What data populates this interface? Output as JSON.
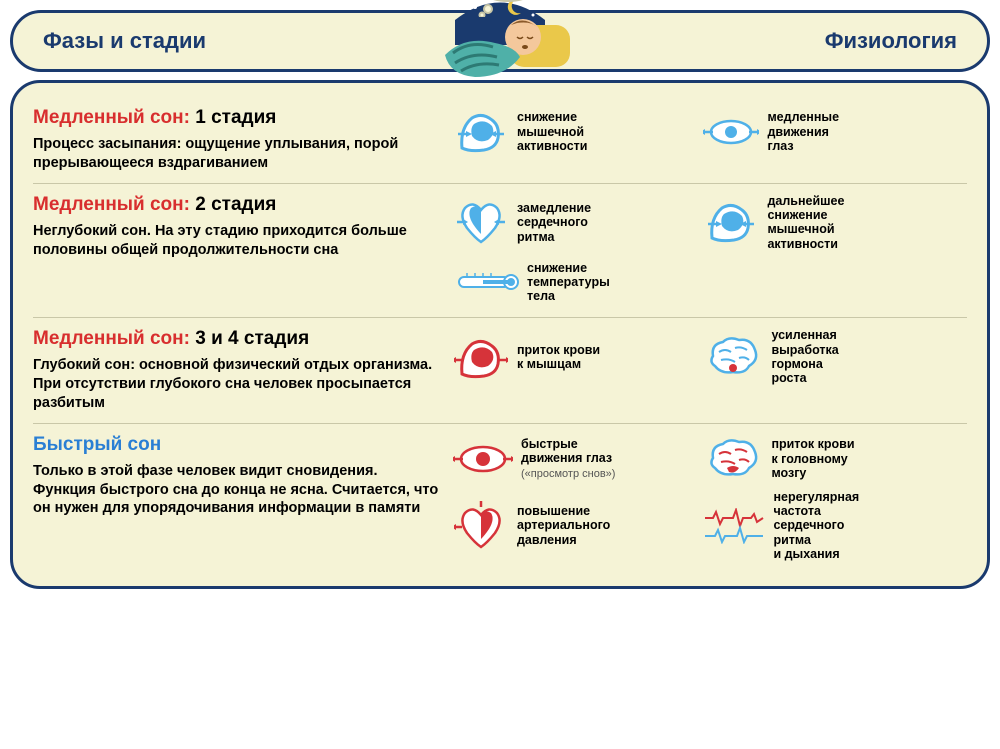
{
  "colors": {
    "panel_bg": "#f5f3d6",
    "border": "#1a3a6e",
    "red": "#d82e2e",
    "blue": "#2a7fd4",
    "darkblue": "#0f3c6e",
    "icon_blue": "#4fb0e8",
    "icon_red": "#d6333a",
    "divider": "#c9c7a8"
  },
  "header": {
    "left": "Фазы и стадии",
    "right": "Физиология"
  },
  "sections": [
    {
      "phase_color": "#d82e2e",
      "phase": "Медленный сон:",
      "stage": "1 стадия",
      "desc": "Процесс засыпания: ощущение уплывания, порой прерывающееся вздрагиванием",
      "phys": [
        {
          "icon": "muscle-blue",
          "label": "снижение\nмышечной\nактивности"
        },
        {
          "icon": "eye-blue",
          "label": "медленные\nдвижения\nглаз"
        }
      ]
    },
    {
      "phase_color": "#d82e2e",
      "phase": "Медленный сон:",
      "stage": "2 стадия",
      "desc": "Неглубокий сон. На эту стадию приходится больше половины общей продолжительности сна",
      "phys": [
        {
          "icon": "heart-blue",
          "label": "замедление\nсердечного\nритма"
        },
        {
          "icon": "muscle-blue",
          "label": "дальнейшее\nснижение\nмышечной\nактивности"
        },
        {
          "icon": "thermo",
          "label": "снижение\nтемпературы\nтела"
        }
      ]
    },
    {
      "phase_color": "#d82e2e",
      "phase": "Медленный сон:",
      "stage": "3 и 4 стадия",
      "desc": "Глубокий сон: основной физический отдых организма. При отсутствии глубокого сна человек просыпается разбитым",
      "phys": [
        {
          "icon": "muscle-red",
          "label": "приток крови\nк мышцам"
        },
        {
          "icon": "brain-blue",
          "label": "усиленная\nвыработка\nгормона\nроста"
        }
      ]
    },
    {
      "phase_color": "#2a7fd4",
      "phase": "Быстрый сон",
      "stage": "",
      "desc": "Только в этой фазе человек видит сновидения. Функция быстрого сна до конца не ясна. Считается, что он нужен для упорядочивания информации в памяти",
      "phys": [
        {
          "icon": "eye-red",
          "label": "быстрые\nдвижения глаз",
          "sub": "(«просмотр снов»)"
        },
        {
          "icon": "brain-red",
          "label": "приток крови\nк головному\nмозгу"
        },
        {
          "icon": "heart-red",
          "label": "повышение\nартериального\nдавления"
        },
        {
          "icon": "wave-red",
          "label": "нерегулярная\nчастота\nсердечного\nритма\nи дыхания"
        }
      ]
    }
  ]
}
